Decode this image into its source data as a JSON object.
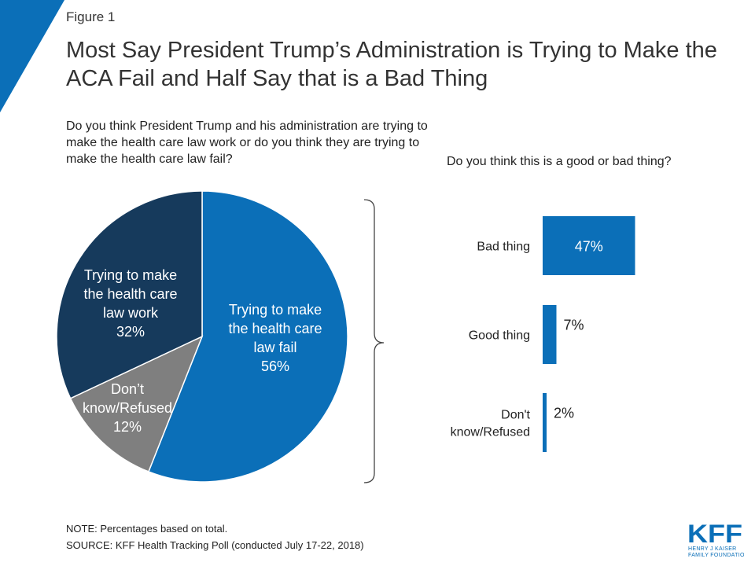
{
  "figure_label": "Figure 1",
  "title": "Most Say President Trump’s Administration is Trying to Make the ACA Fail and Half Say that is a Bad Thing",
  "pie_question": "Do you think President Trump and his administration are trying to make the health care law work or do you think they are trying to make the health care law fail?",
  "bar_question": "Do you think this is a good or bad thing?",
  "note": "NOTE: Percentages based on total.",
  "source": "SOURCE: KFF Health Tracking Poll (conducted July 17-22, 2018)",
  "logo": {
    "text": "KFF",
    "sub1": "HENRY J KAISER",
    "sub2": "FAMILY FOUNDATION",
    "color": "#0b6fb8"
  },
  "colors": {
    "accent": "#0b6fb8",
    "dark": "#163a5c",
    "gray": "#7f7f7f"
  },
  "chart_data": [
    {
      "type": "pie",
      "slices": [
        {
          "lines": [
            "Trying to make",
            "the health care",
            "law fail"
          ],
          "pct": "56%",
          "value": 56,
          "color": "#0b6fb8"
        },
        {
          "lines": [
            "Don’t",
            "know/Refused"
          ],
          "pct": "12%",
          "value": 12,
          "color": "#7f7f7f"
        },
        {
          "lines": [
            "Trying to make",
            "the health care",
            "law work"
          ],
          "pct": "32%",
          "value": 32,
          "color": "#163a5c"
        }
      ]
    },
    {
      "type": "bar",
      "orientation": "horizontal",
      "categories": [
        [
          "Bad thing"
        ],
        [
          "Good thing"
        ],
        [
          "Don't",
          "know/Refused"
        ]
      ],
      "values": [
        47,
        7,
        2
      ],
      "labels": [
        "47%",
        "7%",
        "2%"
      ],
      "color": "#0b6fb8"
    }
  ]
}
